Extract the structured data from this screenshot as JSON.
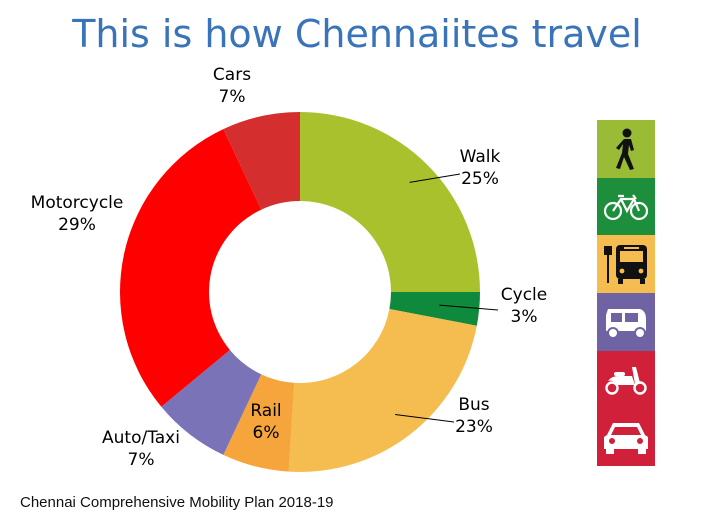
{
  "title": "This is how Chennaiites travel",
  "source": "Chennai Comprehensive Mobility Plan 2018-19",
  "chart_data": {
    "type": "pie",
    "donut": true,
    "title": "This is how Chennaiites travel",
    "unit": "%",
    "slices": [
      {
        "label": "Walk",
        "value": 25,
        "pct_label": "25%",
        "color": "#a9c12c"
      },
      {
        "label": "Cycle",
        "value": 3,
        "pct_label": "3%",
        "color": "#0f8a3c"
      },
      {
        "label": "Bus",
        "value": 23,
        "pct_label": "23%",
        "color": "#f5bd50"
      },
      {
        "label": "Rail",
        "value": 6,
        "pct_label": "6%",
        "color": "#f5a53c"
      },
      {
        "label": "Auto/Taxi",
        "value": 7,
        "pct_label": "7%",
        "color": "#7b73b8"
      },
      {
        "label": "Motorcycle",
        "value": 29,
        "pct_label": "29%",
        "color": "#ff0000"
      },
      {
        "label": "Cars",
        "value": 7,
        "pct_label": "7%",
        "color": "#d42e2e"
      }
    ]
  },
  "legend_icons": [
    {
      "icon": "walking-person-icon",
      "color": "#99bb35"
    },
    {
      "icon": "bicycle-icon",
      "color": "#1d8f3c"
    },
    {
      "icon": "bus-icon",
      "color": "#f5bd50"
    },
    {
      "icon": "auto-rickshaw-icon",
      "color": "#6f63a3"
    },
    {
      "icon": "scooter-icon",
      "color": "#d0203a"
    },
    {
      "icon": "car-icon",
      "color": "#d0203a"
    }
  ]
}
